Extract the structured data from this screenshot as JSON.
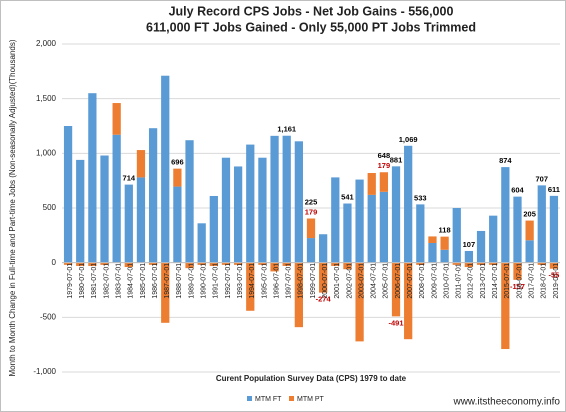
{
  "chart_data": {
    "type": "bar",
    "stacked": true,
    "title": "July Record CPS Jobs - Net Job Gains - 556,000",
    "subtitle": "611,000 FT Jobs Gained - Only 55,000 PT Jobs Trimmed",
    "y_label": "Month to Month Change in Full-time and Part-time Jobs (Non-seasonally Adjusted)(Thousands)",
    "x_label": "Curent Population Survey Data (CPS) 1979 to date",
    "source": "www.itstheeconomy.info",
    "categories": [
      "1979-07-01",
      "1980-07-01",
      "1981-07-01",
      "1982-07-01",
      "1983-07-01",
      "1984-07-01",
      "1985-07-01",
      "1986-07-01",
      "1987-07-01",
      "1988-07-01",
      "1989-07-01",
      "1990-07-01",
      "1991-07-01",
      "1992-07-01",
      "1993-07-01",
      "1994-07-01",
      "1995-07-01",
      "1996-07-01",
      "1997-07-01",
      "1998-07-01",
      "1999-07-01",
      "2000-07-01",
      "2001-07-01",
      "2002-07-01",
      "2003-07-01",
      "2004-07-01",
      "2005-07-01",
      "2006-07-01",
      "2007-07-01",
      "2008-07-01",
      "2009-07-01",
      "2010-07-01",
      "2011-07-01",
      "2012-07-01",
      "2013-07-01",
      "2014-07-01",
      "2015-07-01",
      "2016-07-01",
      "2017-07-01",
      "2018-07-01",
      "2019-07-01"
    ],
    "series": [
      {
        "name": "MTM FT",
        "color": "#5b9bd5",
        "label_color": "#000000",
        "values": [
          1250,
          940,
          1550,
          980,
          1170,
          714,
          780,
          1230,
          1710,
          696,
          1120,
          360,
          610,
          960,
          880,
          1080,
          960,
          1160,
          1161,
          1110,
          225,
          260,
          780,
          541,
          760,
          620,
          648,
          881,
          1069,
          533,
          180,
          118,
          500,
          107,
          290,
          430,
          874,
          604,
          205,
          707,
          611
        ],
        "value_labels": [
          null,
          null,
          null,
          null,
          null,
          "714",
          null,
          null,
          null,
          "696",
          null,
          null,
          null,
          null,
          null,
          null,
          null,
          null,
          "1,161",
          null,
          "225",
          null,
          null,
          "541",
          null,
          null,
          "648",
          "881",
          "1,069",
          "533",
          null,
          "118",
          null,
          "107",
          null,
          null,
          "874",
          "604",
          "205",
          "707",
          "611"
        ]
      },
      {
        "name": "MTM PT",
        "color": "#ed7d31",
        "label_color": "#c00000",
        "values": [
          -20,
          -30,
          -30,
          -20,
          290,
          -40,
          250,
          -20,
          -550,
          164,
          -50,
          -20,
          -30,
          -20,
          -20,
          -440,
          -20,
          -80,
          -30,
          -590,
          179,
          -274,
          -30,
          -60,
          -720,
          200,
          179,
          -491,
          -700,
          -20,
          60,
          120,
          -20,
          -40,
          -20,
          -20,
          -790,
          -157,
          180,
          -20,
          -55
        ],
        "value_labels": [
          null,
          null,
          null,
          null,
          null,
          null,
          null,
          null,
          null,
          null,
          null,
          null,
          null,
          null,
          null,
          null,
          null,
          null,
          null,
          null,
          "179",
          "-274",
          null,
          null,
          null,
          null,
          "179",
          "-491",
          null,
          null,
          null,
          null,
          null,
          null,
          null,
          null,
          null,
          "-157",
          null,
          null,
          "-55"
        ]
      }
    ],
    "ylim": [
      -1000,
      2000
    ],
    "yticks": [
      {
        "value": -1000,
        "label": "-1,000"
      },
      -500,
      0,
      500,
      {
        "value": 1000,
        "label": "1,000"
      },
      {
        "value": 1500,
        "label": "1,500"
      },
      {
        "value": 2000,
        "label": "2,000"
      }
    ],
    "grid": true,
    "legend": "bottom"
  }
}
